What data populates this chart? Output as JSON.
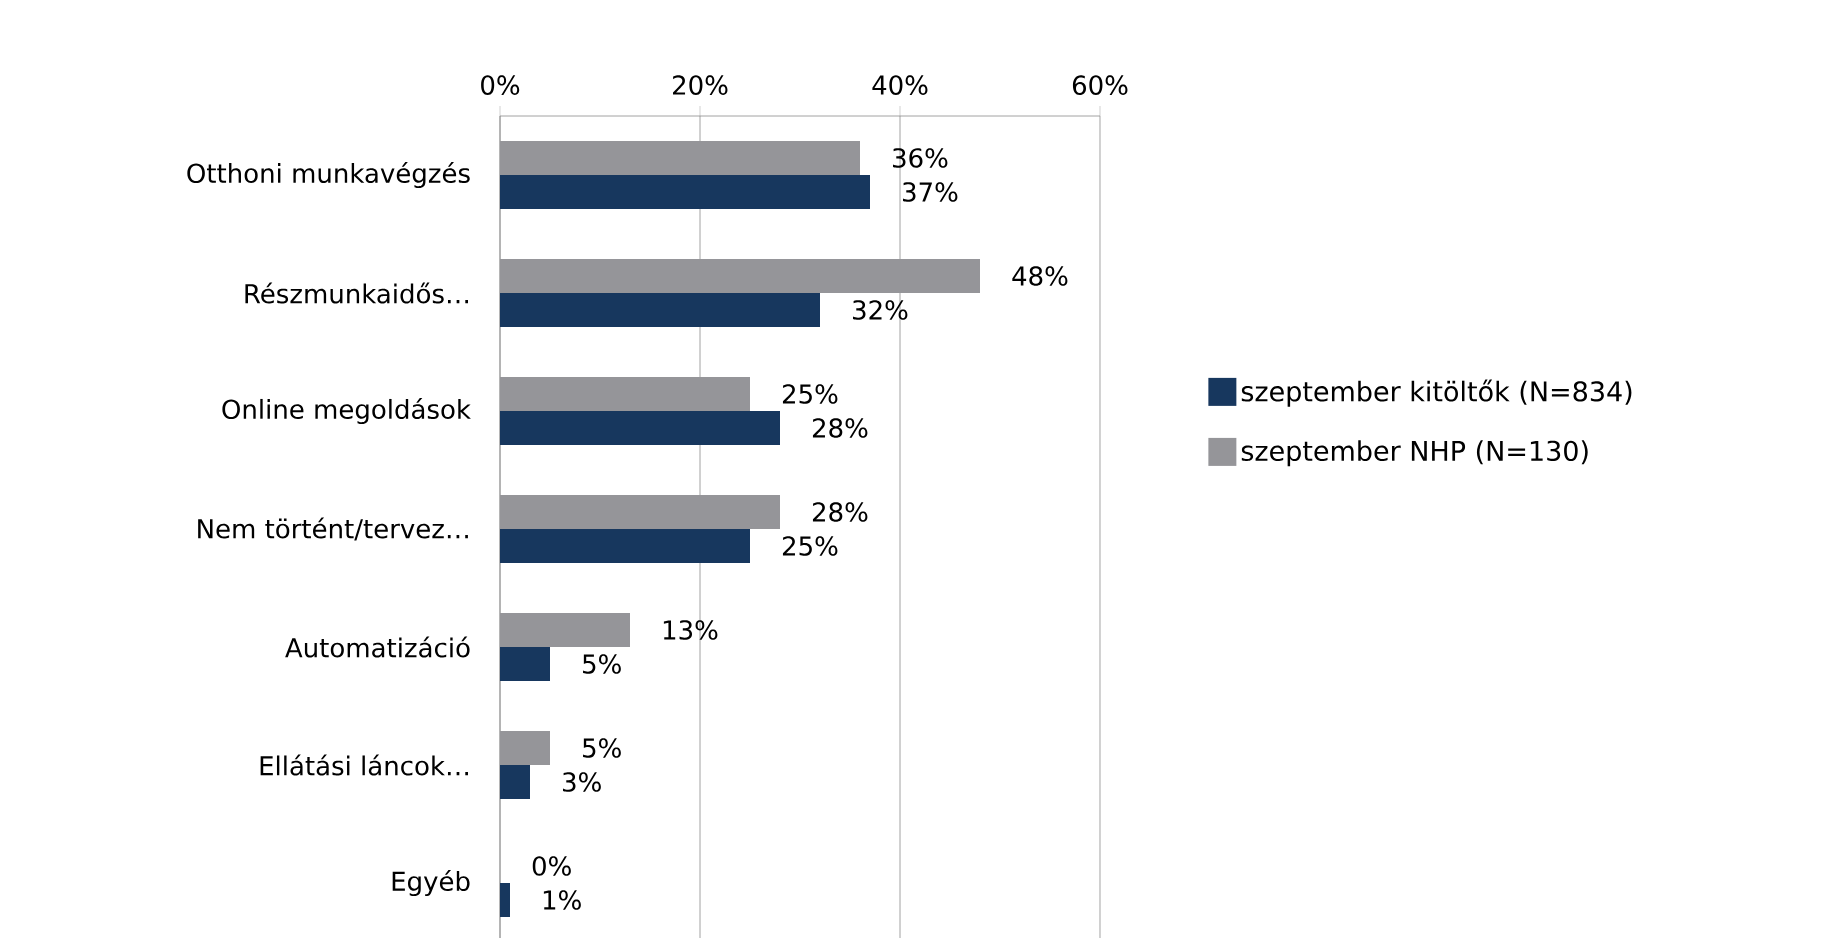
{
  "chart_data": {
    "type": "bar",
    "orientation": "horizontal",
    "categories": [
      "Otthoni munkavégzés",
      "Részmunkaidős…",
      "Online megoldások",
      "Nem történt/tervez…",
      "Automatizáció",
      "Ellátási láncok…",
      "Egyéb"
    ],
    "series": [
      {
        "name": "szeptember kitöltők (N=834)",
        "color": "#17375e",
        "values": [
          37,
          32,
          28,
          25,
          5,
          3,
          1
        ],
        "value_labels": [
          "37%",
          "32%",
          "28%",
          "25%",
          "5%",
          "3%",
          "1%"
        ]
      },
      {
        "name": "szeptember NHP (N=130)",
        "color": "#959599",
        "values": [
          36,
          48,
          25,
          28,
          13,
          5,
          0
        ],
        "value_labels": [
          "36%",
          "48%",
          "25%",
          "28%",
          "13%",
          "5%",
          "0%"
        ]
      }
    ],
    "xlim": [
      0,
      60
    ],
    "xticks": [
      {
        "value": 0,
        "label": "0%"
      },
      {
        "value": 20,
        "label": "20%"
      },
      {
        "value": 40,
        "label": "40%"
      },
      {
        "value": 60,
        "label": "60%"
      }
    ],
    "grid": "x",
    "legend": "right"
  }
}
